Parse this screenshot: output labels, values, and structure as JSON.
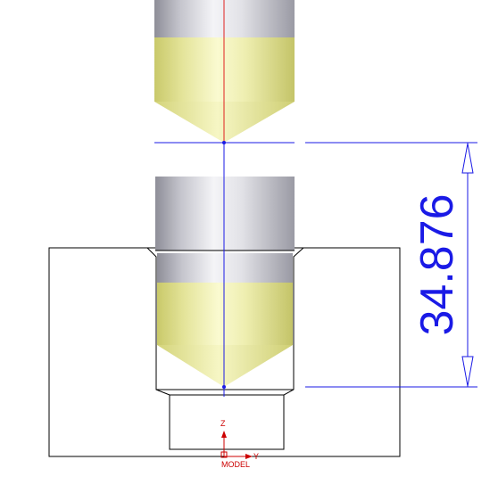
{
  "viewport": {
    "dimension": {
      "value": "34.876",
      "color": "#1a1ae6"
    },
    "triad": {
      "z_label": "Z",
      "y_label": "Y",
      "model_label": "MODEL",
      "color": "#cc0000"
    },
    "colors": {
      "dimension_line": "#1a1ae6",
      "center_line": "#e02020",
      "outline": "#000000",
      "shank_metal": "#c8c8d0",
      "tip_yellow": "#e6e69a"
    }
  }
}
